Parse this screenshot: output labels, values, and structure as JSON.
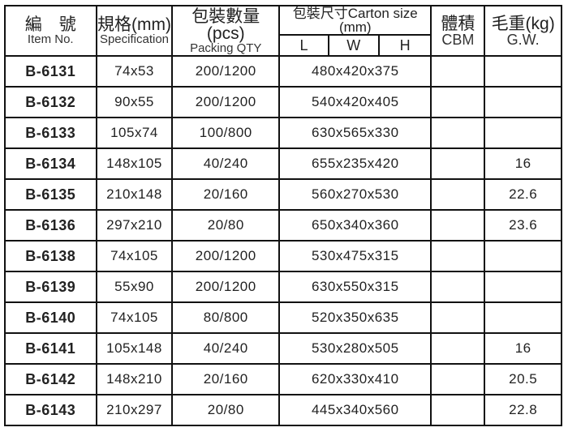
{
  "header": {
    "item_zh": "編　號",
    "item_en": "Item No.",
    "spec_zh": "規格(mm)",
    "spec_en": "Specification",
    "qty_zh": "包裝數量(pcs)",
    "qty_en": "Packing QTY",
    "carton": "包裝尺寸Carton size (mm)",
    "l": "L",
    "w": "W",
    "h": "H",
    "cbm_zh": "體積",
    "cbm_en": "CBM",
    "gw_zh": "毛重(kg)",
    "gw_en": "G.W."
  },
  "rows": [
    {
      "item": "B-6131",
      "spec": "74x53",
      "qty": "200/1200",
      "carton": "480x420x375",
      "cbm": "",
      "gw": ""
    },
    {
      "item": "B-6132",
      "spec": "90x55",
      "qty": "200/1200",
      "carton": "540x420x405",
      "cbm": "",
      "gw": ""
    },
    {
      "item": "B-6133",
      "spec": "105x74",
      "qty": "100/800",
      "carton": "630x565x330",
      "cbm": "",
      "gw": ""
    },
    {
      "item": "B-6134",
      "spec": "148x105",
      "qty": "40/240",
      "carton": "655x235x420",
      "cbm": "",
      "gw": "16"
    },
    {
      "item": "B-6135",
      "spec": "210x148",
      "qty": "20/160",
      "carton": "560x270x530",
      "cbm": "",
      "gw": "22.6"
    },
    {
      "item": "B-6136",
      "spec": "297x210",
      "qty": "20/80",
      "carton": "650x340x360",
      "cbm": "",
      "gw": "23.6"
    },
    {
      "item": "B-6138",
      "spec": "74x105",
      "qty": "200/1200",
      "carton": "530x475x315",
      "cbm": "",
      "gw": ""
    },
    {
      "item": "B-6139",
      "spec": "55x90",
      "qty": "200/1200",
      "carton": "630x550x315",
      "cbm": "",
      "gw": ""
    },
    {
      "item": "B-6140",
      "spec": "74x105",
      "qty": "80/800",
      "carton": "520x350x635",
      "cbm": "",
      "gw": ""
    },
    {
      "item": "B-6141",
      "spec": "105x148",
      "qty": "40/240",
      "carton": "530x280x505",
      "cbm": "",
      "gw": "16"
    },
    {
      "item": "B-6142",
      "spec": "148x210",
      "qty": "20/160",
      "carton": "620x330x410",
      "cbm": "",
      "gw": "20.5"
    },
    {
      "item": "B-6143",
      "spec": "210x297",
      "qty": "20/80",
      "carton": "445x340x560",
      "cbm": "",
      "gw": "22.8"
    }
  ]
}
